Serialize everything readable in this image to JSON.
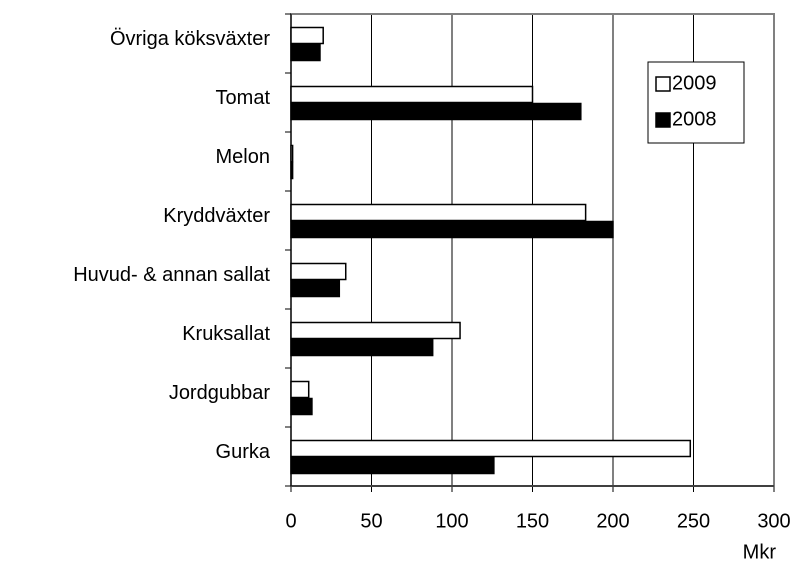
{
  "chart_data": {
    "type": "hbar",
    "categories": [
      "Övriga köksväxter",
      "Tomat",
      "Melon",
      "Kryddväxter",
      "Huvud- & annan sallat",
      "Kruksallat",
      "Jordgubbar",
      "Gurka"
    ],
    "series": [
      {
        "name": "2009",
        "color": "#ffffff",
        "values": [
          20,
          150,
          1,
          183,
          34,
          105,
          11,
          248
        ]
      },
      {
        "name": "2008",
        "color": "#000000",
        "values": [
          18,
          180,
          1,
          200,
          30,
          88,
          13,
          126
        ]
      }
    ],
    "x_label": "Mkr",
    "xlim": [
      0,
      300
    ],
    "xticks": [
      0,
      50,
      100,
      150,
      200,
      250,
      300
    ],
    "grid": true,
    "legend": "upper-right"
  }
}
